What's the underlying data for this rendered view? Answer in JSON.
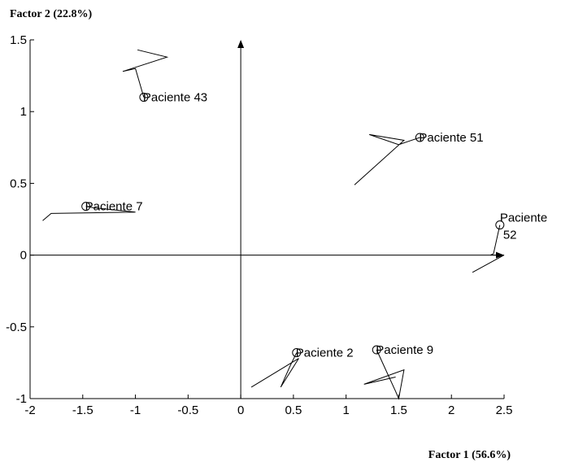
{
  "chart_data": {
    "type": "scatter",
    "xlabel": "Factor 1 (56.6%)",
    "ylabel": "Factor 2 (22.8%)",
    "xlim": [
      -2,
      2.5
    ],
    "ylim": [
      -1,
      1.5
    ],
    "xticks": [
      "-2",
      "-1.5",
      "-1",
      "-0.5",
      "0",
      "0.5",
      "1",
      "1.5",
      "2",
      "2.5"
    ],
    "yticks": [
      "1.5",
      "1",
      "0.5",
      "0",
      "-0.5",
      "-1"
    ],
    "grid": false,
    "legend": "none",
    "points": [
      {
        "label": "Paciente 43",
        "x": -0.92,
        "y": 1.1,
        "trajectory": [
          [
            -0.92,
            1.1
          ],
          [
            -1.0,
            1.3
          ],
          [
            -1.12,
            1.28
          ],
          [
            -0.7,
            1.38
          ],
          [
            -0.98,
            1.43
          ]
        ]
      },
      {
        "label": "Paciente 51",
        "x": 1.7,
        "y": 0.82,
        "trajectory": [
          [
            1.7,
            0.82
          ],
          [
            1.5,
            0.77
          ],
          [
            1.22,
            0.84
          ],
          [
            1.55,
            0.8
          ],
          [
            1.08,
            0.49
          ]
        ]
      },
      {
        "label": "Paciente 7",
        "x": -1.47,
        "y": 0.34,
        "trajectory": [
          [
            -1.47,
            0.34
          ],
          [
            -1.4,
            0.33
          ],
          [
            -1.0,
            0.3
          ],
          [
            -1.8,
            0.29
          ],
          [
            -1.88,
            0.24
          ]
        ]
      },
      {
        "label_lines": [
          "Paciente",
          "52"
        ],
        "x": 2.46,
        "y": 0.21,
        "trajectory": [
          [
            2.46,
            0.21
          ],
          [
            2.4,
            0.01
          ],
          [
            2.37,
            0.0
          ],
          [
            2.5,
            0.0
          ],
          [
            2.2,
            -0.12
          ]
        ]
      },
      {
        "label": "Paciente 2",
        "x": 0.53,
        "y": -0.68,
        "trajectory": [
          [
            0.53,
            -0.68
          ],
          [
            0.47,
            -0.77
          ],
          [
            0.38,
            -0.92
          ],
          [
            0.55,
            -0.72
          ],
          [
            0.1,
            -0.92
          ]
        ]
      },
      {
        "label": "Paciente 9",
        "x": 1.29,
        "y": -0.66,
        "trajectory": [
          [
            1.29,
            -0.66
          ],
          [
            1.47,
            -0.95
          ],
          [
            1.5,
            -1.0
          ],
          [
            1.55,
            -0.8
          ],
          [
            1.17,
            -0.9
          ],
          [
            1.47,
            -0.85
          ]
        ]
      }
    ]
  }
}
